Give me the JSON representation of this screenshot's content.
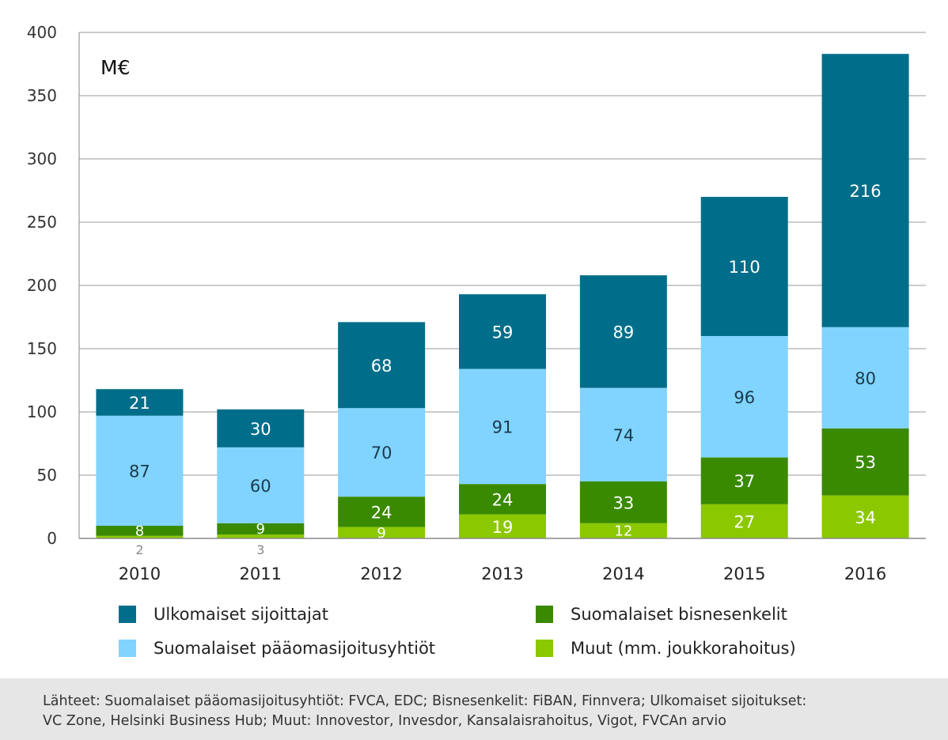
{
  "chart_data": {
    "type": "bar",
    "stacked": true,
    "unit_label": "M€",
    "categories": [
      "2010",
      "2011",
      "2012",
      "2013",
      "2014",
      "2015",
      "2016"
    ],
    "ylim": [
      0,
      400
    ],
    "yticks": [
      "0",
      "50",
      "100",
      "150",
      "200",
      "250",
      "300",
      "350",
      "400"
    ],
    "grid": true,
    "series": [
      {
        "name": "Muut (mm. joukkorahoitus)",
        "color": "#8cc800",
        "values": [
          2,
          3,
          9,
          19,
          12,
          27,
          34
        ],
        "labels": [
          "2",
          "3",
          "9",
          "19",
          "12",
          "27",
          "34"
        ]
      },
      {
        "name": "Suomalaiset bisnesenkelit",
        "color": "#3a8a00",
        "values": [
          8,
          9,
          24,
          24,
          33,
          37,
          53
        ],
        "labels": [
          "8",
          "9",
          "24",
          "24",
          "33",
          "37",
          "53"
        ]
      },
      {
        "name": "Suomalaiset pääomasijoitusyhtiöt",
        "color": "#80d4ff",
        "values": [
          87,
          60,
          70,
          91,
          74,
          96,
          80
        ],
        "labels": [
          "87",
          "60",
          "70",
          "91",
          "74",
          "96",
          "80"
        ]
      },
      {
        "name": "Ulkomaiset sijoittajat",
        "color": "#006e8a",
        "values": [
          21,
          30,
          68,
          59,
          89,
          110,
          216
        ],
        "labels": [
          "21",
          "30",
          "68",
          "59",
          "89",
          "110",
          "216"
        ]
      }
    ]
  },
  "legend": {
    "ulkomaiset": "Ulkomaiset sijoittajat",
    "paaomasijoitus": "Suomalaiset pääomasijoitusyhtiöt",
    "bisnesenkelit": "Suomalaiset bisnesenkelit",
    "muut": "Muut (mm. joukkorahoitus)",
    "colors": {
      "ulkomaiset": "#006e8a",
      "paaomasijoitus": "#80d4ff",
      "bisnesenkelit": "#3a8a00",
      "muut": "#8cc800"
    }
  },
  "source": {
    "line1": "Lähteet: Suomalaiset pääomasijoitusyhtiöt: FVCA, EDC; Bisnesenkelit: FiBAN, Finnvera; Ulkomaiset sijoitukset:",
    "line2": "VC Zone, Helsinki Business Hub; Muut: Innovestor, Invesdor, Kansalaisrahoitus, Vigot, FVCAn arvio"
  }
}
